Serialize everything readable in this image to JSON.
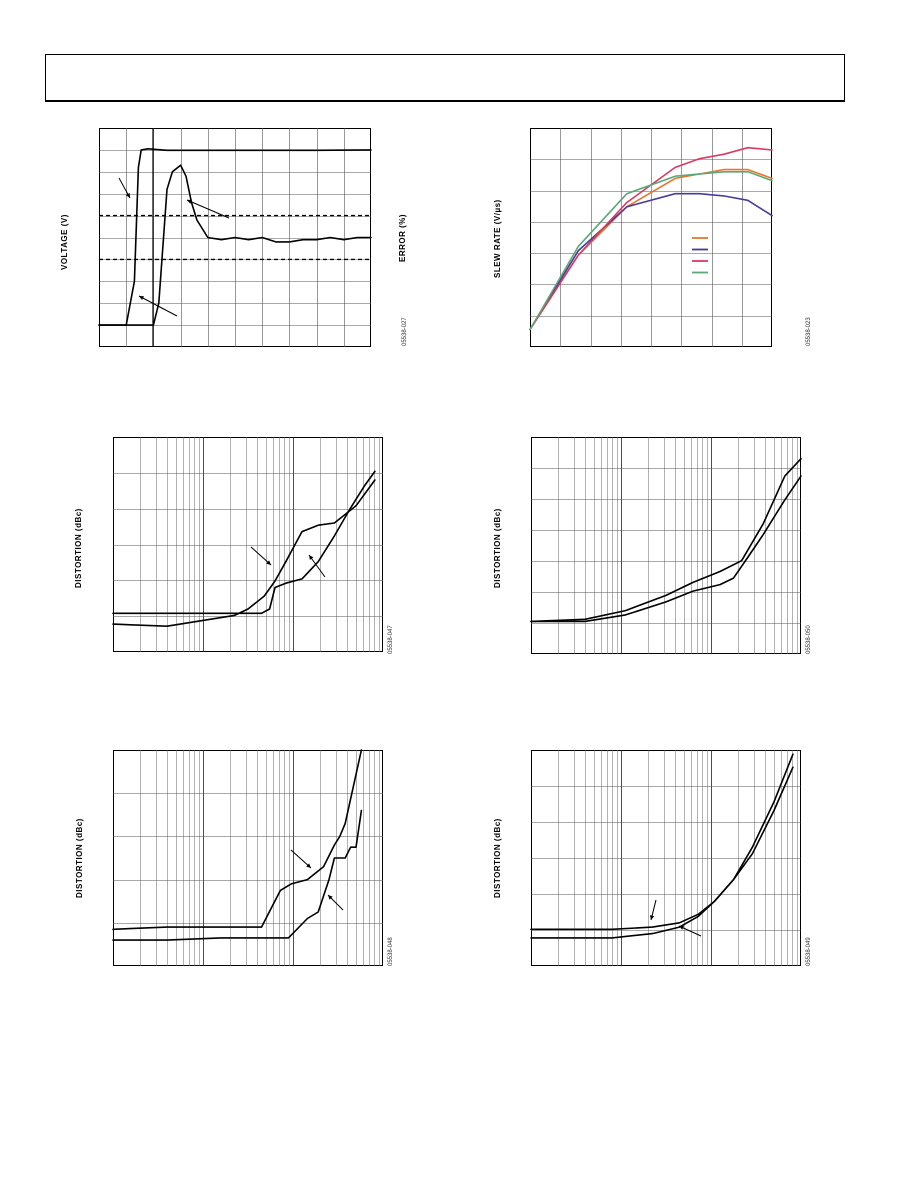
{
  "page": {
    "header": ""
  },
  "charts": {
    "c1": {
      "ylabel": "VOLTAGE (V)",
      "y2label": "ERROR (%)",
      "code": "05538-027"
    },
    "c2": {
      "ylabel": "SLEW RATE (V/µs)",
      "code": "05538-023",
      "colors": [
        "#e8762a",
        "#4b3a9a",
        "#d83a62",
        "#5aa87a"
      ]
    },
    "c3": {
      "ylabel": "DISTORTION (dBc)",
      "code": "05538-047"
    },
    "c4": {
      "ylabel": "DISTORTION (dBc)",
      "code": "05538-050"
    },
    "c5": {
      "ylabel": "DISTORTION (dBc)",
      "code": "05538-048"
    },
    "c6": {
      "ylabel": "DISTORTION (dBc)",
      "code": "05538-049"
    }
  },
  "chart_data": [
    {
      "type": "line",
      "title": "",
      "xlabel": "",
      "ylabel": "VOLTAGE (V)",
      "y2label": "ERROR (%)",
      "grid": true,
      "xlim": [
        0,
        1
      ],
      "ylim": [
        0,
        1
      ],
      "series": [
        {
          "name": "",
          "x": [
            0,
            0.1,
            0.13,
            0.145,
            0.155,
            0.18,
            0.25,
            0.5,
            0.8,
            1
          ],
          "y": [
            0.1,
            0.1,
            0.3,
            0.82,
            0.9,
            0.905,
            0.898,
            0.898,
            0.898,
            0.9
          ]
        },
        {
          "name": "",
          "x": [
            0,
            0.2,
            0.22,
            0.25,
            0.27,
            0.3,
            0.32,
            0.34,
            0.36,
            0.4,
            0.45,
            0.5,
            0.55,
            0.6,
            0.65,
            0.7,
            0.75,
            0.8,
            0.85,
            0.9,
            0.95,
            1
          ],
          "y": [
            0.1,
            0.1,
            0.2,
            0.72,
            0.8,
            0.83,
            0.78,
            0.66,
            0.58,
            0.5,
            0.49,
            0.5,
            0.49,
            0.5,
            0.48,
            0.48,
            0.49,
            0.49,
            0.5,
            0.49,
            0.5,
            0.5
          ]
        }
      ],
      "reference_lines": [
        0.6,
        0.4
      ]
    },
    {
      "type": "line",
      "title": "",
      "xlabel": "",
      "ylabel": "SLEW RATE (V/µs)",
      "grid": true,
      "xlim": [
        0,
        1
      ],
      "ylim": [
        0,
        1
      ],
      "series": [
        {
          "name": "",
          "x": [
            0,
            0.2,
            0.4,
            0.6,
            0.8,
            0.9,
            1
          ],
          "y": [
            0.08,
            0.42,
            0.64,
            0.77,
            0.81,
            0.81,
            0.77
          ]
        },
        {
          "name": "",
          "x": [
            0,
            0.2,
            0.4,
            0.6,
            0.7,
            0.8,
            0.9,
            1
          ],
          "y": [
            0.08,
            0.44,
            0.64,
            0.7,
            0.7,
            0.69,
            0.67,
            0.6
          ]
        },
        {
          "name": "",
          "x": [
            0,
            0.2,
            0.4,
            0.6,
            0.7,
            0.8,
            0.9,
            1
          ],
          "y": [
            0.08,
            0.42,
            0.66,
            0.82,
            0.86,
            0.88,
            0.91,
            0.9
          ]
        },
        {
          "name": "",
          "x": [
            0,
            0.2,
            0.4,
            0.6,
            0.8,
            0.9,
            1
          ],
          "y": [
            0.08,
            0.46,
            0.7,
            0.78,
            0.8,
            0.8,
            0.76
          ]
        }
      ]
    },
    {
      "type": "line",
      "title": "",
      "xlabel": "",
      "ylabel": "DISTORTION (dBc)",
      "xscale": "log",
      "grid": true,
      "xlim": [
        0,
        1
      ],
      "ylim": [
        0,
        1
      ],
      "series": [
        {
          "name": "",
          "x": [
            0,
            0.2,
            0.4,
            0.45,
            0.5,
            0.56,
            0.6,
            0.64,
            0.7,
            0.76,
            0.82,
            0.9,
            0.97
          ],
          "y": [
            0.13,
            0.12,
            0.16,
            0.17,
            0.2,
            0.26,
            0.33,
            0.42,
            0.56,
            0.59,
            0.6,
            0.68,
            0.8
          ]
        },
        {
          "name": "",
          "x": [
            0,
            0.2,
            0.4,
            0.55,
            0.58,
            0.6,
            0.64,
            0.7,
            0.76,
            0.82,
            0.88,
            0.93,
            0.97
          ],
          "y": [
            0.18,
            0.18,
            0.18,
            0.18,
            0.2,
            0.3,
            0.32,
            0.34,
            0.42,
            0.54,
            0.67,
            0.77,
            0.84
          ]
        }
      ]
    },
    {
      "type": "line",
      "title": "",
      "xlabel": "",
      "ylabel": "DISTORTION (dBc)",
      "xscale": "log",
      "grid": true,
      "xlim": [
        0,
        1
      ],
      "ylim": [
        0,
        1
      ],
      "series": [
        {
          "name": "",
          "x": [
            0,
            0.2,
            0.35,
            0.5,
            0.6,
            0.7,
            0.78,
            0.86,
            0.94,
            1
          ],
          "y": [
            0.15,
            0.16,
            0.2,
            0.27,
            0.33,
            0.38,
            0.43,
            0.6,
            0.82,
            0.9
          ]
        },
        {
          "name": "",
          "x": [
            0,
            0.2,
            0.35,
            0.5,
            0.6,
            0.7,
            0.75,
            0.8,
            0.86,
            0.94,
            1
          ],
          "y": [
            0.15,
            0.15,
            0.18,
            0.24,
            0.29,
            0.32,
            0.35,
            0.44,
            0.55,
            0.71,
            0.82
          ]
        }
      ]
    },
    {
      "type": "line",
      "title": "",
      "xlabel": "",
      "ylabel": "DISTORTION (dBc)",
      "xscale": "log",
      "grid": true,
      "xlim": [
        0,
        1
      ],
      "ylim": [
        0,
        1
      ],
      "series": [
        {
          "name": "",
          "x": [
            0,
            0.2,
            0.4,
            0.55,
            0.62,
            0.66,
            0.72,
            0.78,
            0.82,
            0.84,
            0.86,
            0.92
          ],
          "y": [
            0.17,
            0.18,
            0.18,
            0.18,
            0.35,
            0.38,
            0.4,
            0.46,
            0.56,
            0.6,
            0.66,
            1
          ]
        },
        {
          "name": "",
          "x": [
            0,
            0.2,
            0.4,
            0.55,
            0.65,
            0.72,
            0.76,
            0.8,
            0.82,
            0.86,
            0.88,
            0.9,
            0.92
          ],
          "y": [
            0.12,
            0.12,
            0.13,
            0.13,
            0.13,
            0.22,
            0.25,
            0.4,
            0.5,
            0.5,
            0.55,
            0.55,
            0.72
          ]
        }
      ]
    },
    {
      "type": "line",
      "title": "",
      "xlabel": "",
      "ylabel": "DISTORTION (dBc)",
      "xscale": "log",
      "grid": true,
      "xlim": [
        0,
        1
      ],
      "ylim": [
        0,
        1
      ],
      "series": [
        {
          "name": "",
          "x": [
            0,
            0.3,
            0.45,
            0.55,
            0.62,
            0.68,
            0.75,
            0.82,
            0.9,
            0.97
          ],
          "y": [
            0.17,
            0.17,
            0.18,
            0.2,
            0.24,
            0.3,
            0.4,
            0.55,
            0.76,
            0.98
          ]
        },
        {
          "name": "",
          "x": [
            0,
            0.3,
            0.45,
            0.55,
            0.62,
            0.68,
            0.75,
            0.82,
            0.9,
            0.97
          ],
          "y": [
            0.13,
            0.13,
            0.15,
            0.18,
            0.23,
            0.3,
            0.4,
            0.52,
            0.72,
            0.92
          ]
        }
      ]
    }
  ]
}
